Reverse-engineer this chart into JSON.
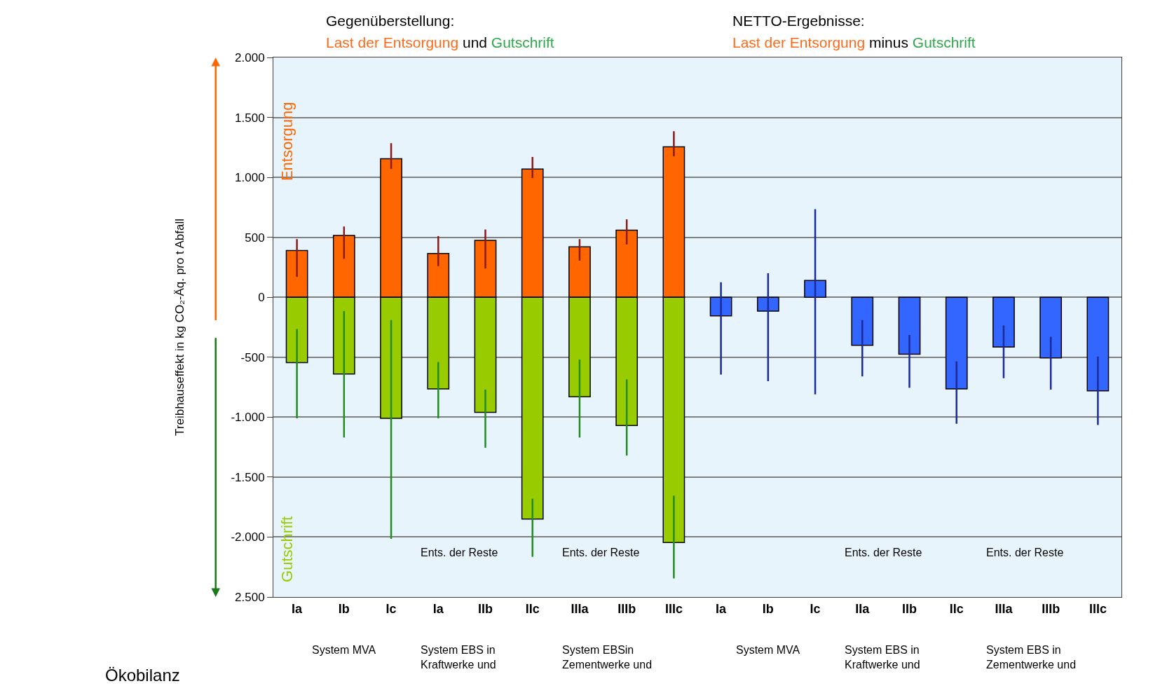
{
  "chart_data": {
    "type": "bar",
    "stacked": true,
    "legend": false,
    "grid": "y",
    "ylabel": "Treibhauseffekt in kg CO₂-Äq. pro t Abfall",
    "categories": [
      "Ia",
      "Ib",
      "Ic",
      "Ia",
      "IIb",
      "IIc",
      "IIIa",
      "IIIb",
      "IIIc",
      "Ia",
      "Ib",
      "Ic",
      "IIa",
      "IIb",
      "IIc",
      "IIIa",
      "IIIb",
      "IIIc"
    ],
    "ylim": [
      -2500,
      2000
    ],
    "yticks": [
      {
        "value": 2000,
        "label": "2.000"
      },
      {
        "value": 1500,
        "label": "1.500"
      },
      {
        "value": 1000,
        "label": "1.000"
      },
      {
        "value": 500,
        "label": "500"
      },
      0,
      {
        "value": -500,
        "label": "-500"
      },
      {
        "value": -1000,
        "label": "-1.000"
      },
      {
        "value": -1500,
        "label": "-1.500"
      },
      {
        "value": -2000,
        "label": "-2.000"
      },
      {
        "value": -2500,
        "label": "2.500"
      }
    ],
    "series": [
      {
        "name": "Entsorgung",
        "color": "#ff6600",
        "values": [
          390,
          515,
          1155,
          365,
          475,
          1070,
          420,
          560,
          1255,
          null,
          null,
          null,
          null,
          null,
          null,
          null,
          null,
          null
        ],
        "errors": [
          [
            170,
            485
          ],
          [
            320,
            590
          ],
          [
            1070,
            1285
          ],
          [
            260,
            510
          ],
          [
            240,
            565
          ],
          [
            995,
            1170
          ],
          [
            305,
            485
          ],
          [
            440,
            650
          ],
          [
            1175,
            1385
          ],
          null,
          null,
          null,
          null,
          null,
          null,
          null,
          null,
          null
        ]
      },
      {
        "name": "Gutschrift",
        "color": "#99cc00",
        "values": [
          -545,
          -640,
          -1010,
          -765,
          -960,
          -1850,
          -830,
          -1070,
          -2045,
          null,
          null,
          null,
          null,
          null,
          null,
          null,
          null,
          null
        ],
        "errors": [
          [
            -1010,
            -265
          ],
          [
            -1170,
            -115
          ],
          [
            -2015,
            -190
          ],
          [
            -1010,
            -540
          ],
          [
            -1255,
            -770
          ],
          [
            -2165,
            -1680
          ],
          [
            -1170,
            -520
          ],
          [
            -1320,
            -685
          ],
          [
            -2345,
            -1655
          ],
          null,
          null,
          null,
          null,
          null,
          null,
          null,
          null,
          null
        ]
      },
      {
        "color": "#3366ff",
        "values": [
          null,
          null,
          null,
          null,
          null,
          null,
          null,
          null,
          null,
          -155,
          -115,
          140,
          -400,
          -475,
          -765,
          -415,
          -505,
          -780
        ],
        "errors": [
          null,
          null,
          null,
          null,
          null,
          null,
          null,
          null,
          null,
          [
            -645,
            125
          ],
          [
            -700,
            200
          ],
          [
            -810,
            735
          ],
          [
            -660,
            -190
          ],
          [
            -755,
            -315
          ],
          [
            -1055,
            -535
          ],
          [
            -675,
            -235
          ],
          [
            -770,
            -330
          ],
          [
            -1065,
            -495
          ]
        ]
      }
    ],
    "annotations": [
      "Gegenüberstellung:",
      "Last der Entsorgung",
      "und",
      "Gutschrift",
      "NETTO-Ergebnisse:",
      "Last der Entsorgung",
      "minus",
      "Gutschrift",
      "Ents. der Reste",
      "Ents. der Reste",
      "Ents. der Reste",
      "Ents. der Reste",
      "System MVA",
      "System EBS in\nKraftwerke und",
      "System EBSin\nZementwerke und",
      "System MVA",
      "System EBS in\nKraftwerke und",
      "System EBS in\nZementwerke und",
      "Ökobilanz"
    ]
  }
}
